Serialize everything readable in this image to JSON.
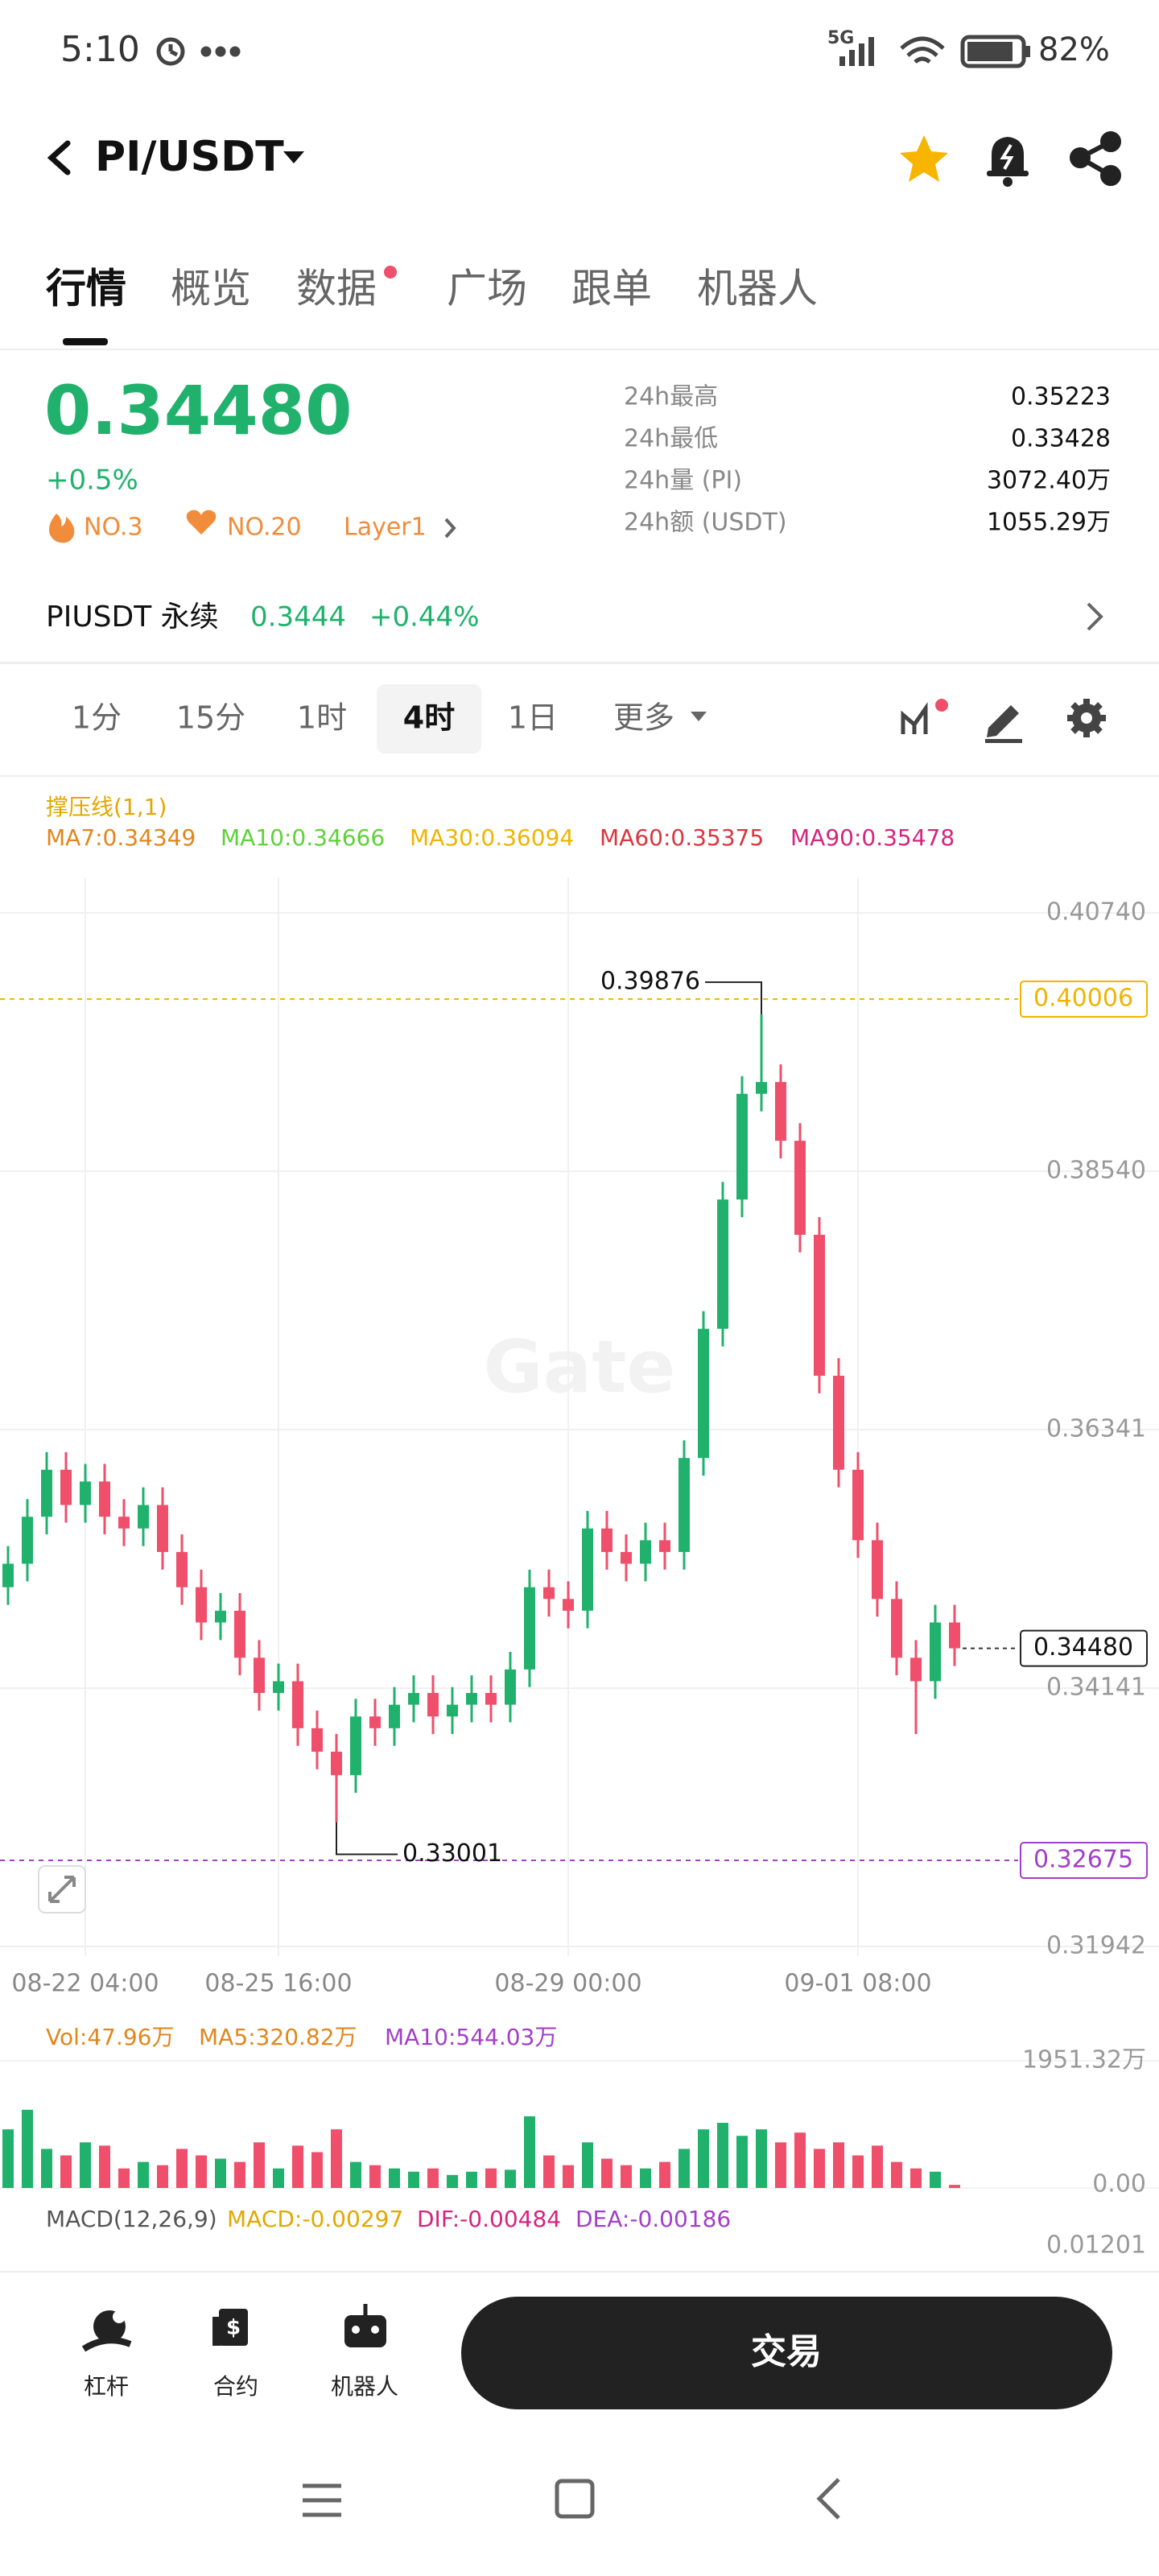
{
  "status_bar": {
    "time": "5:10",
    "network": "5G",
    "battery": "82%"
  },
  "header": {
    "pair": "PI/USDT"
  },
  "tabs": [
    "行情",
    "概览",
    "数据",
    "广场",
    "跟单",
    "机器人"
  ],
  "ticker": {
    "price": "0.34480",
    "change": "+0.5%",
    "tags": [
      "NO.3",
      "NO.20",
      "Layer1"
    ],
    "stats": [
      {
        "label": "24h最高",
        "value": "0.35223"
      },
      {
        "label": "24h最低",
        "value": "0.33428"
      },
      {
        "label": "24h量 (PI)",
        "value": "3072.40万"
      },
      {
        "label": "24h额 (USDT)",
        "value": "1055.29万"
      }
    ]
  },
  "perpetual": {
    "name": "PIUSDT 永续",
    "price": "0.3444",
    "change": "+0.44%"
  },
  "intervals": [
    "1分",
    "15分",
    "1时",
    "4时",
    "1日",
    "更多"
  ],
  "indicators": {
    "support": "撑压线(1,1)",
    "ma": [
      {
        "text": "MA7:0.34349",
        "color": "#e2861d"
      },
      {
        "text": "MA10:0.34666",
        "color": "#5fd13a"
      },
      {
        "text": "MA30:0.36094",
        "color": "#f0b400"
      },
      {
        "text": "MA60:0.35375",
        "color": "#d9363e"
      },
      {
        "text": "MA90:0.35478",
        "color": "#d4257e"
      }
    ]
  },
  "watermark": "Gate",
  "chart_data": [
    {
      "type": "candlestick",
      "up_color": "#20b26c",
      "down_color": "#ef4f6b",
      "categories": [
        null,
        null,
        null,
        null,
        "08-22 04:00",
        null,
        null,
        null,
        null,
        null,
        null,
        null,
        null,
        null,
        "08-25 16:00",
        null,
        null,
        null,
        null,
        null,
        null,
        null,
        null,
        null,
        null,
        null,
        null,
        null,
        null,
        "08-29 00:00",
        null,
        null,
        null,
        null,
        null,
        null,
        null,
        null,
        null,
        null,
        null,
        null,
        null,
        null,
        "09-01 08:00",
        null,
        null,
        null,
        null,
        null
      ],
      "open": [
        0.35,
        0.352,
        0.356,
        0.36,
        0.357,
        0.359,
        0.356,
        0.355,
        0.357,
        0.353,
        0.35,
        0.347,
        0.348,
        0.344,
        0.341,
        0.342,
        0.338,
        0.336,
        0.334,
        0.339,
        0.338,
        0.34,
        0.341,
        0.339,
        0.34,
        0.341,
        0.34,
        0.343,
        0.35,
        0.349,
        0.348,
        0.355,
        0.353,
        0.352,
        0.354,
        0.353,
        0.361,
        0.372,
        0.383,
        0.392,
        0.393,
        0.388,
        0.38,
        0.368,
        0.36,
        0.354,
        0.349,
        0.344,
        0.342,
        0.347
      ],
      "high": [
        0.3535,
        0.3575,
        0.3615,
        0.3615,
        0.3605,
        0.3605,
        0.3575,
        0.3585,
        0.3585,
        0.3545,
        0.3515,
        0.3495,
        0.3495,
        0.3455,
        0.3435,
        0.3435,
        0.3395,
        0.3375,
        0.3405,
        0.3405,
        0.3415,
        0.3425,
        0.3425,
        0.3415,
        0.3425,
        0.3425,
        0.3445,
        0.3515,
        0.3515,
        0.3505,
        0.3565,
        0.3565,
        0.3545,
        0.3555,
        0.3555,
        0.3625,
        0.3735,
        0.3845,
        0.3935,
        0.39876,
        0.3945,
        0.3895,
        0.3815,
        0.3695,
        0.3615,
        0.3555,
        0.3505,
        0.3455,
        0.3485,
        0.3485
      ],
      "low": [
        0.3485,
        0.3505,
        0.3545,
        0.3555,
        0.3555,
        0.3545,
        0.3535,
        0.3535,
        0.3515,
        0.3485,
        0.3455,
        0.3455,
        0.3425,
        0.3395,
        0.3395,
        0.3365,
        0.3345,
        0.33001,
        0.3325,
        0.3365,
        0.3365,
        0.3385,
        0.3375,
        0.3375,
        0.3385,
        0.3385,
        0.3385,
        0.3415,
        0.3475,
        0.3465,
        0.3465,
        0.3515,
        0.3505,
        0.3505,
        0.3515,
        0.3515,
        0.3595,
        0.3705,
        0.3815,
        0.3905,
        0.3865,
        0.3785,
        0.3665,
        0.3585,
        0.3525,
        0.3475,
        0.3425,
        0.3375,
        0.3405,
        0.3433
      ],
      "close": [
        0.352,
        0.356,
        0.36,
        0.357,
        0.359,
        0.356,
        0.355,
        0.357,
        0.353,
        0.35,
        0.347,
        0.348,
        0.344,
        0.341,
        0.342,
        0.338,
        0.336,
        0.334,
        0.339,
        0.338,
        0.34,
        0.341,
        0.339,
        0.34,
        0.341,
        0.34,
        0.343,
        0.35,
        0.349,
        0.348,
        0.355,
        0.353,
        0.352,
        0.354,
        0.353,
        0.361,
        0.372,
        0.383,
        0.392,
        0.393,
        0.388,
        0.38,
        0.368,
        0.36,
        0.354,
        0.349,
        0.344,
        0.342,
        0.347,
        0.3448
      ],
      "ylim": [
        0.31942,
        0.4074
      ],
      "yticks": [
        {
          "value": 0.4074,
          "label": "0.40740"
        },
        {
          "value": 0.3854,
          "label": "0.38540"
        },
        0.36341,
        0.34141,
        0.31942
      ],
      "grid": true,
      "levels": [
        {
          "value": 0.40006,
          "color": "#f0b400"
        },
        {
          "value": 0.32675,
          "color": "#a23fc8"
        }
      ],
      "last_price": {
        "value": 0.3448,
        "label": "0.34480"
      },
      "max_label": 0.39876,
      "min_label": 0.33001
    },
    {
      "type": "volume",
      "legend": [
        {
          "text": "Vol:47.96万",
          "color": "#e2861d"
        },
        {
          "text": "MA5:320.82万",
          "color": "#e2861d"
        },
        {
          "text": "MA10:544.03万",
          "color": "#a23fc8"
        }
      ],
      "values": [
        900,
        1200,
        600,
        500,
        700,
        650,
        300,
        400,
        350,
        600,
        500,
        450,
        400,
        700,
        300,
        650,
        550,
        900,
        400,
        350,
        300,
        250,
        300,
        200,
        250,
        300,
        280,
        1100,
        500,
        350,
        700,
        450,
        350,
        300,
        400,
        600,
        900,
        1000,
        800,
        900,
        700,
        850,
        600,
        700,
        500,
        650,
        400,
        300,
        250,
        47.96
      ],
      "ylim": [
        0,
        1951.32
      ],
      "yticks": [
        {
          "value": 1951.32,
          "label": "1951.32万"
        },
        {
          "value": 0,
          "label": "0.00"
        }
      ]
    }
  ],
  "macd": {
    "legend": [
      {
        "text": "MACD(12,26,9)",
        "color": "#555555"
      },
      {
        "text": "MACD:-0.00297",
        "color": "#e2a800"
      },
      {
        "text": "DIF:-0.00484",
        "color": "#d4257e"
      },
      {
        "text": "DEA:-0.00186",
        "color": "#a23fc8"
      }
    ],
    "tick": "0.01201"
  },
  "bottom_bar": {
    "items": [
      "杠杆",
      "合约",
      "机器人"
    ],
    "trade": "交易"
  }
}
